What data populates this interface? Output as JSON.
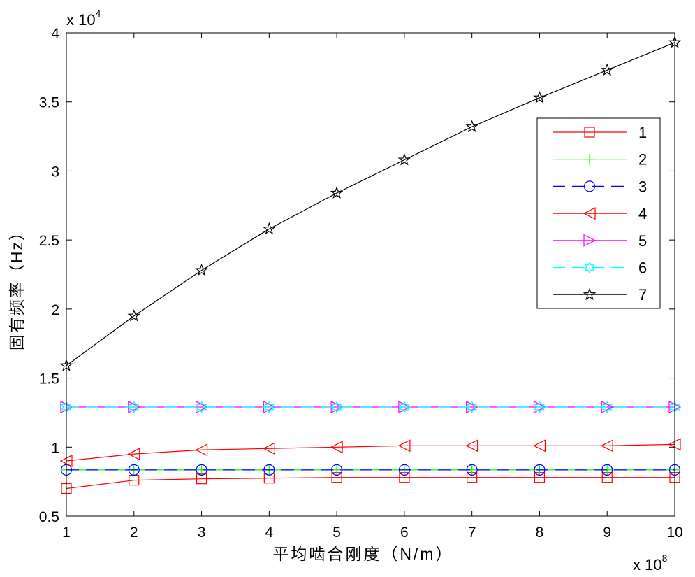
{
  "chart_data": {
    "type": "line",
    "xlabel": "平均啮合刚度（N/m）",
    "ylabel": "固有频率（Hz）",
    "x_exponent_label": "x 10",
    "x_exponent": "8",
    "y_exponent_label": "x 10",
    "y_exponent": "4",
    "x": [
      1,
      2,
      3,
      4,
      5,
      6,
      7,
      8,
      9,
      10
    ],
    "x_ticks": [
      "1",
      "2",
      "3",
      "4",
      "5",
      "6",
      "7",
      "8",
      "9",
      "10"
    ],
    "y_ticks": [
      "0.5",
      "1",
      "1.5",
      "2",
      "2.5",
      "3",
      "3.5",
      "4"
    ],
    "y_tick_values": [
      0.5,
      1,
      1.5,
      2,
      2.5,
      3,
      3.5,
      4
    ],
    "xlim": [
      1,
      10
    ],
    "ylim": [
      0.5,
      4
    ],
    "grid": false,
    "legend_position": "right",
    "series": [
      {
        "name": "1",
        "color": "#ff0000",
        "marker": "square",
        "dash": "",
        "values": [
          0.7,
          0.76,
          0.77,
          0.775,
          0.78,
          0.78,
          0.78,
          0.78,
          0.78,
          0.78
        ]
      },
      {
        "name": "2",
        "color": "#00ff00",
        "marker": "plus",
        "dash": "",
        "values": [
          0.835,
          0.835,
          0.835,
          0.835,
          0.835,
          0.835,
          0.835,
          0.835,
          0.835,
          0.835
        ]
      },
      {
        "name": "3",
        "color": "#0000ff",
        "marker": "circle",
        "dash": "18,10",
        "values": [
          0.835,
          0.835,
          0.835,
          0.835,
          0.835,
          0.835,
          0.835,
          0.835,
          0.835,
          0.835
        ]
      },
      {
        "name": "4",
        "color": "#ff0000",
        "marker": "triangle-left",
        "dash": "",
        "values": [
          0.9,
          0.95,
          0.98,
          0.99,
          1.0,
          1.01,
          1.01,
          1.01,
          1.01,
          1.02
        ]
      },
      {
        "name": "5",
        "color": "#ff00ff",
        "marker": "triangle-right",
        "dash": "",
        "values": [
          1.29,
          1.29,
          1.29,
          1.29,
          1.29,
          1.29,
          1.29,
          1.29,
          1.29,
          1.29
        ]
      },
      {
        "name": "6",
        "color": "#00ffff",
        "marker": "hexagram",
        "dash": "18,10",
        "values": [
          1.29,
          1.29,
          1.29,
          1.29,
          1.29,
          1.29,
          1.29,
          1.29,
          1.29,
          1.29
        ]
      },
      {
        "name": "7",
        "color": "#000000",
        "marker": "pentagram",
        "dash": "",
        "values": [
          1.59,
          1.95,
          2.28,
          2.58,
          2.84,
          3.08,
          3.32,
          3.53,
          3.73,
          3.93
        ]
      }
    ]
  }
}
